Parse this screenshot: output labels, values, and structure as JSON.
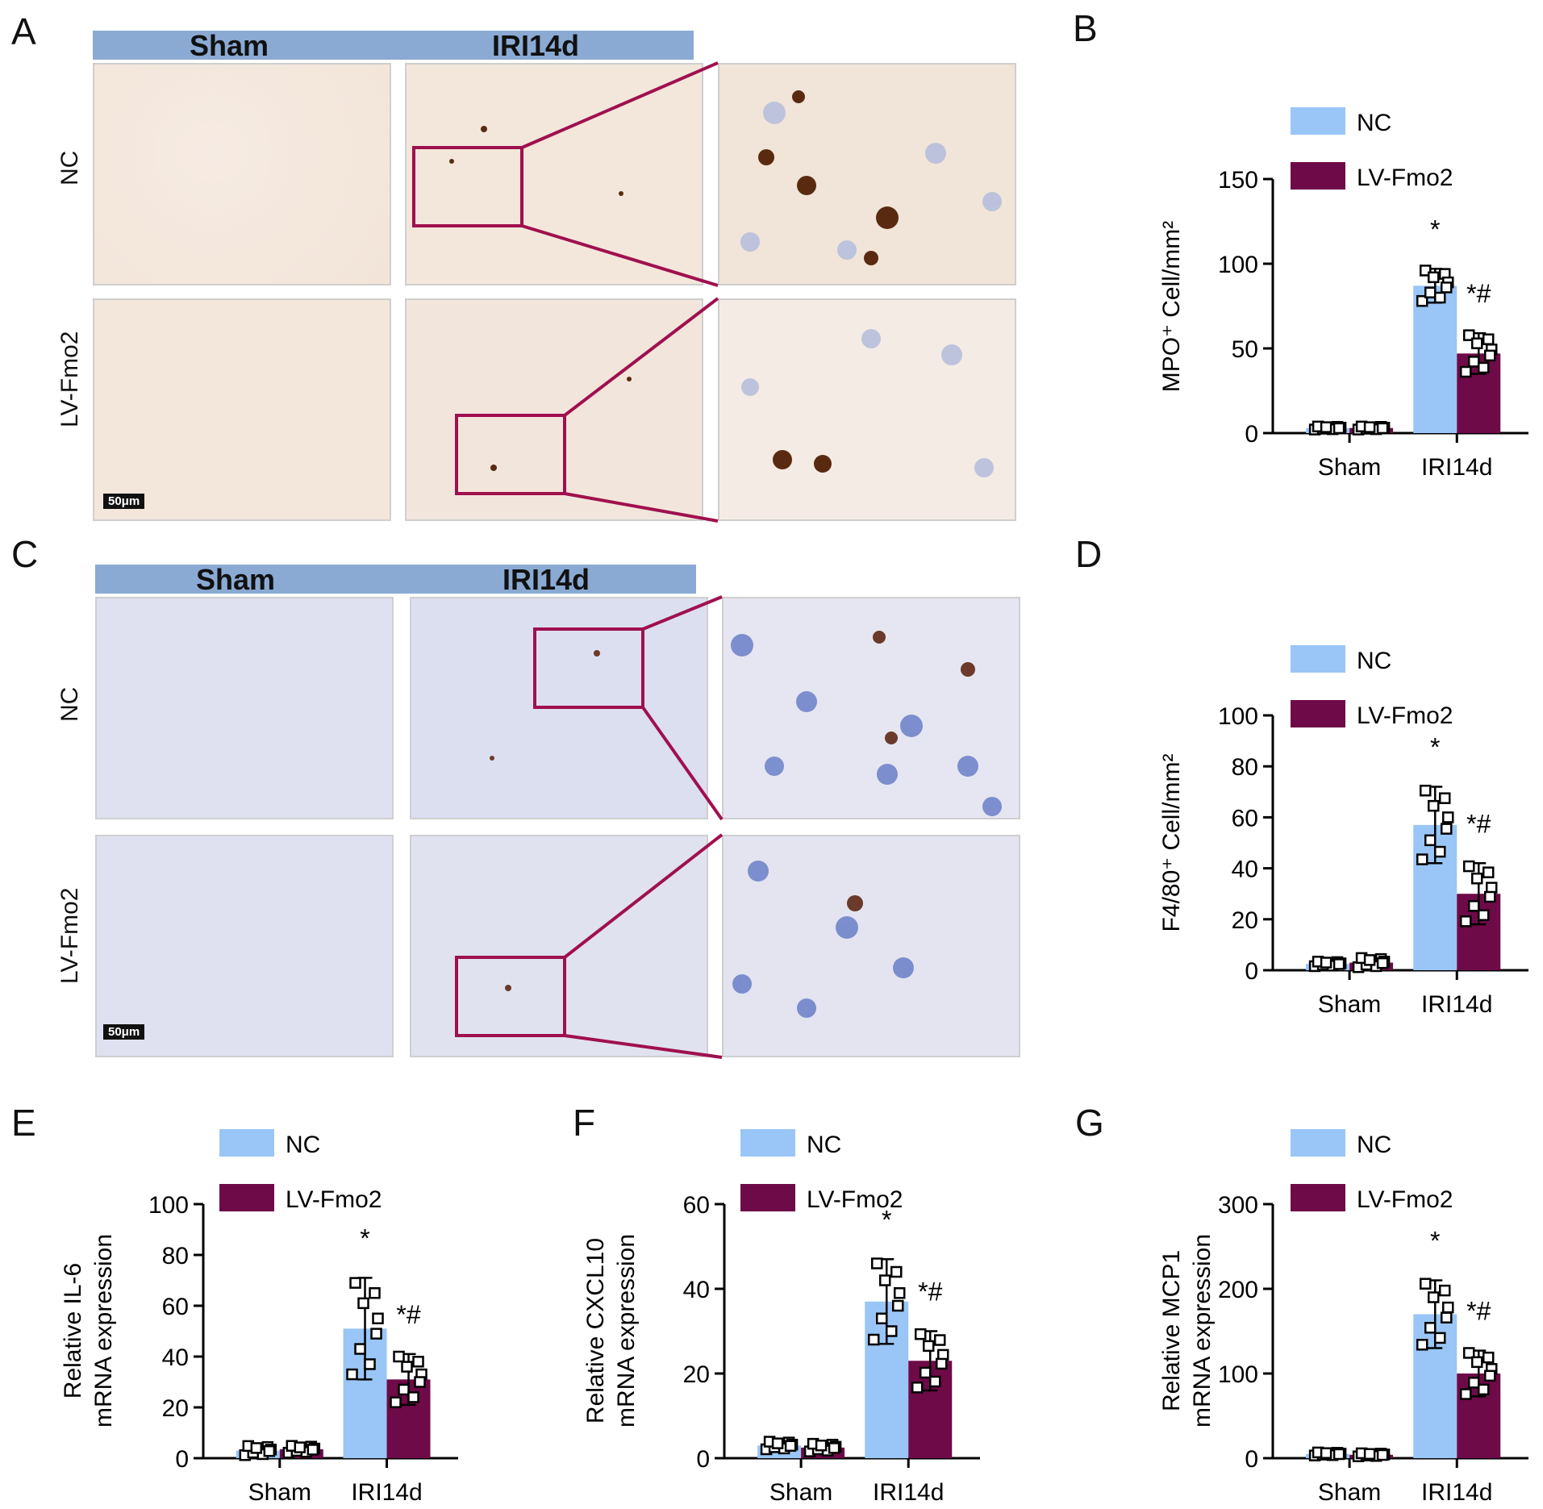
{
  "panels": {
    "A": "A",
    "B": "B",
    "C": "C",
    "D": "D",
    "E": "E",
    "F": "F",
    "G": "G"
  },
  "micrographs": {
    "header_sham": "Sham",
    "header_iri": "IRI14d",
    "row_nc": "NC",
    "row_lv": "LV-Fmo2",
    "scale_bar": "50μm"
  },
  "colors": {
    "nc": "#99c6f7",
    "lv": "#6e0a48",
    "header": "#8aaad4",
    "box": "#a0104e",
    "stain_ihc": "#f3e6da",
    "stain_f480": "#dfe1f0"
  },
  "chart_data": [
    {
      "panel": "B",
      "type": "bar",
      "categories": [
        "Sham",
        "IRI14d"
      ],
      "ylabel": "MPO⁺ Cell/mm²",
      "ylim": [
        0,
        150
      ],
      "yticks": [
        0,
        50,
        100,
        150
      ],
      "legend": [
        "NC",
        "LV-Fmo2"
      ],
      "series": [
        {
          "name": "NC",
          "values": [
            3,
            87
          ],
          "err": [
            1,
            10
          ]
        },
        {
          "name": "LV-Fmo2",
          "values": [
            3,
            47
          ],
          "err": [
            1,
            12
          ]
        }
      ],
      "annotations": [
        {
          "category": "IRI14d",
          "series": "NC",
          "text": "*"
        },
        {
          "category": "IRI14d",
          "series": "LV-Fmo2",
          "text": "*#"
        }
      ]
    },
    {
      "panel": "D",
      "type": "bar",
      "categories": [
        "Sham",
        "IRI14d"
      ],
      "ylabel": "F4/80⁺ Cell/mm²",
      "ylim": [
        0,
        100
      ],
      "yticks": [
        0,
        20,
        40,
        60,
        80,
        100
      ],
      "legend": [
        "NC",
        "LV-Fmo2"
      ],
      "series": [
        {
          "name": "NC",
          "values": [
            2.5,
            57
          ],
          "err": [
            1,
            15
          ]
        },
        {
          "name": "LV-Fmo2",
          "values": [
            3,
            30
          ],
          "err": [
            2,
            12
          ]
        }
      ],
      "annotations": [
        {
          "category": "IRI14d",
          "series": "NC",
          "text": "*"
        },
        {
          "category": "IRI14d",
          "series": "LV-Fmo2",
          "text": "*#"
        }
      ]
    },
    {
      "panel": "E",
      "type": "bar",
      "categories": [
        "Sham",
        "IRI14d"
      ],
      "ylabel": [
        "Relative IL-6",
        "mRNA expression"
      ],
      "ylim": [
        0,
        100
      ],
      "yticks": [
        0,
        20,
        40,
        60,
        80,
        100
      ],
      "legend": [
        "NC",
        "LV-Fmo2"
      ],
      "series": [
        {
          "name": "NC",
          "values": [
            3,
            51
          ],
          "err": [
            2,
            20
          ]
        },
        {
          "name": "LV-Fmo2",
          "values": [
            3.5,
            31
          ],
          "err": [
            1.5,
            10
          ]
        }
      ],
      "annotations": [
        {
          "category": "IRI14d",
          "series": "NC",
          "text": "*"
        },
        {
          "category": "IRI14d",
          "series": "LV-Fmo2",
          "text": "*#"
        }
      ]
    },
    {
      "panel": "F",
      "type": "bar",
      "categories": [
        "Sham",
        "IRI14d"
      ],
      "ylabel": [
        "Relative CXCL10",
        "mRNA expression"
      ],
      "ylim": [
        0,
        60
      ],
      "yticks": [
        0,
        20,
        40,
        60
      ],
      "legend": [
        "NC",
        "LV-Fmo2"
      ],
      "series": [
        {
          "name": "NC",
          "values": [
            3,
            37
          ],
          "err": [
            1,
            10
          ]
        },
        {
          "name": "LV-Fmo2",
          "values": [
            2.5,
            23
          ],
          "err": [
            1,
            7
          ]
        }
      ],
      "annotations": [
        {
          "category": "IRI14d",
          "series": "NC",
          "text": "*"
        },
        {
          "category": "IRI14d",
          "series": "LV-Fmo2",
          "text": "*#"
        }
      ]
    },
    {
      "panel": "G",
      "type": "bar",
      "categories": [
        "Sham",
        "IRI14d"
      ],
      "ylabel": [
        "Relative MCP1",
        "mRNA expression"
      ],
      "ylim": [
        0,
        300
      ],
      "yticks": [
        0,
        100,
        200,
        300
      ],
      "legend": [
        "NC",
        "LV-Fmo2"
      ],
      "series": [
        {
          "name": "NC",
          "values": [
            5,
            170
          ],
          "err": [
            2,
            40
          ]
        },
        {
          "name": "LV-Fmo2",
          "values": [
            4,
            100
          ],
          "err": [
            2,
            27
          ]
        }
      ],
      "annotations": [
        {
          "category": "IRI14d",
          "series": "NC",
          "text": "*"
        },
        {
          "category": "IRI14d",
          "series": "LV-Fmo2",
          "text": "*#"
        }
      ]
    }
  ]
}
